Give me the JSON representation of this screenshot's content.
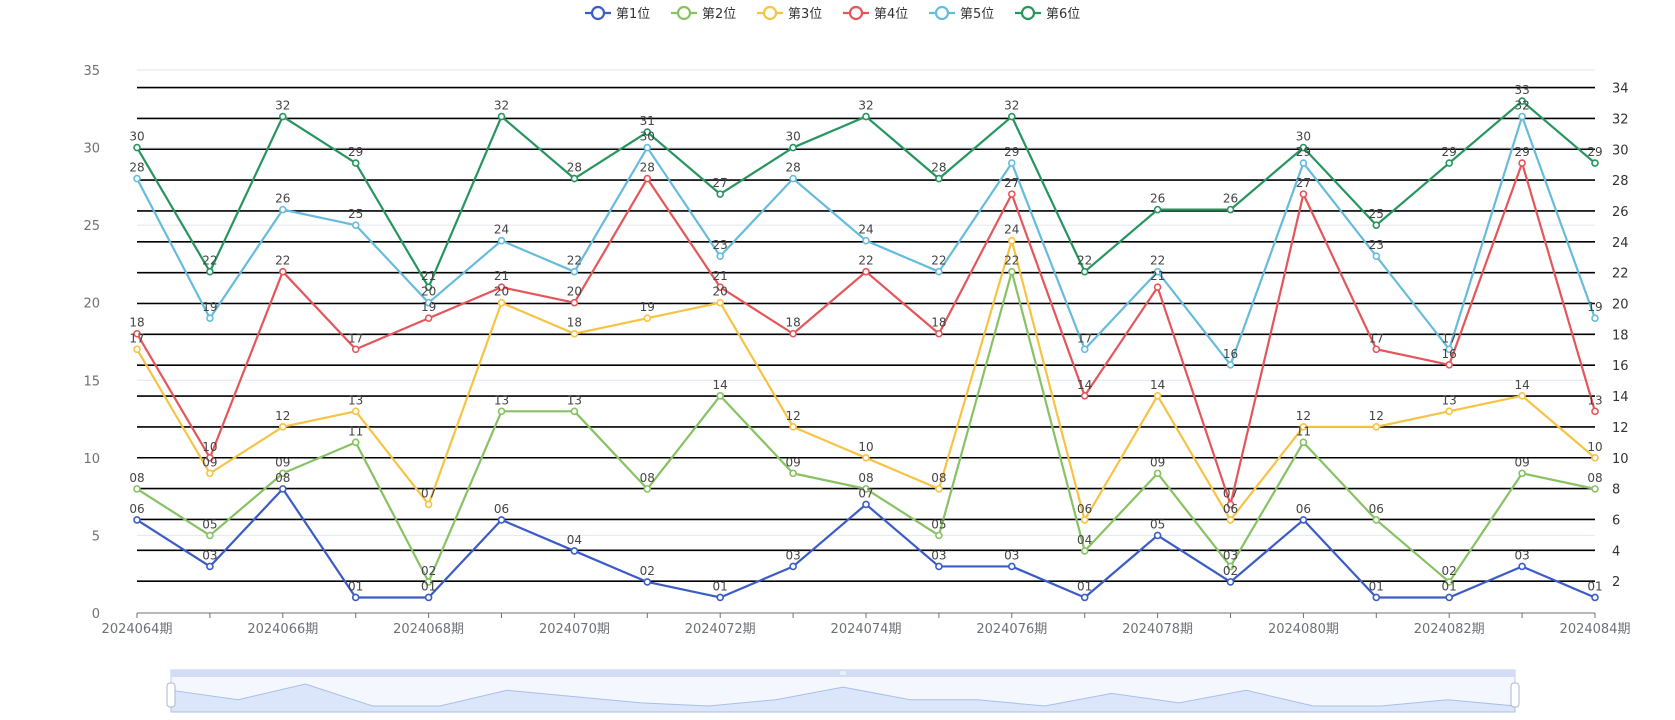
{
  "colors": {
    "series": [
      "#3b5cc7",
      "#87c263",
      "#f6c344",
      "#e5565a",
      "#67bbdc",
      "#26965e"
    ],
    "grid": "#e0e6f1",
    "ref_line": "#000000",
    "axis": "#6e7079",
    "zoom_fill": "#dbe6fb",
    "zoom_border": "#bccdee"
  },
  "chart_data": {
    "type": "line",
    "x": [
      "2024064期",
      "2024065期",
      "2024066期",
      "2024067期",
      "2024068期",
      "2024069期",
      "2024070期",
      "2024071期",
      "2024072期",
      "2024073期",
      "2024074期",
      "2024075期",
      "2024076期",
      "2024077期",
      "2024078期",
      "2024079期",
      "2024080期",
      "2024081期",
      "2024082期",
      "2024083期",
      "2024084期"
    ],
    "x_tick_labels": [
      "2024064期",
      "2024066期",
      "2024068期",
      "2024070期",
      "2024072期",
      "2024074期",
      "2024076期",
      "2024078期",
      "2024080期",
      "2024082期",
      "2024084期"
    ],
    "ylim": [
      0,
      35
    ],
    "y_ticks": [
      "0",
      "5",
      "10",
      "15",
      "20",
      "25",
      "30",
      "35"
    ],
    "y2_ticks": [
      "2",
      "4",
      "6",
      "8",
      "10",
      "12",
      "14",
      "16",
      "18",
      "20",
      "22",
      "24",
      "26",
      "28",
      "30",
      "32",
      "34"
    ],
    "reference_lines": [
      2,
      4,
      6,
      8,
      10,
      12,
      14,
      16,
      18,
      20,
      22,
      24,
      26,
      28,
      30,
      32,
      34
    ],
    "legend_position": "top-center",
    "grid": true,
    "series": [
      {
        "name": "第1位",
        "values": [
          6,
          3,
          8,
          1,
          1,
          6,
          4,
          2,
          1,
          3,
          7,
          3,
          3,
          1,
          5,
          2,
          6,
          1,
          1,
          3,
          1
        ],
        "labels": [
          "06",
          "03",
          "08",
          "01",
          "01",
          "06",
          "04",
          "02",
          "01",
          "03",
          "07",
          "03",
          "03",
          "01",
          "05",
          "02",
          "06",
          "01",
          "01",
          "03",
          "01"
        ]
      },
      {
        "name": "第2位",
        "values": [
          8,
          5,
          9,
          11,
          2,
          13,
          13,
          8,
          14,
          9,
          8,
          5,
          22,
          4,
          9,
          3,
          11,
          6,
          2,
          9,
          8
        ],
        "labels": [
          "08",
          "05",
          "09",
          "11",
          "02",
          "13",
          "13",
          "08",
          "14",
          "09",
          "08",
          "05",
          "22",
          "04",
          "09",
          "03",
          "11",
          "06",
          "02",
          "09",
          "08"
        ]
      },
      {
        "name": "第3位",
        "values": [
          17,
          9,
          12,
          13,
          7,
          20,
          18,
          19,
          20,
          12,
          10,
          8,
          24,
          6,
          14,
          6,
          12,
          12,
          13,
          14,
          10
        ],
        "labels": [
          "17",
          "09",
          "12",
          "13",
          "07",
          "20",
          "18",
          "19",
          "20",
          "12",
          "10",
          "08",
          "24",
          "06",
          "14",
          "06",
          "12",
          "12",
          "13",
          "14",
          "10"
        ]
      },
      {
        "name": "第4位",
        "values": [
          18,
          10,
          22,
          17,
          19,
          21,
          20,
          28,
          21,
          18,
          22,
          18,
          27,
          14,
          21,
          7,
          27,
          17,
          16,
          29,
          13
        ],
        "labels": [
          "18",
          "10",
          "22",
          "17",
          "19",
          "21",
          "20",
          "28",
          "21",
          "18",
          "22",
          "18",
          "27",
          "14",
          "21",
          "07",
          "27",
          "17",
          "16",
          "29",
          "13"
        ]
      },
      {
        "name": "第5位",
        "values": [
          28,
          19,
          26,
          25,
          20,
          24,
          22,
          30,
          23,
          28,
          24,
          22,
          29,
          17,
          22,
          16,
          29,
          23,
          17,
          32,
          19
        ],
        "labels": [
          "28",
          "19",
          "26",
          "25",
          "20",
          "24",
          "22",
          "30",
          "23",
          "28",
          "24",
          "22",
          "29",
          "17",
          "22",
          "16",
          "29",
          "23",
          "17",
          "32",
          "19"
        ]
      },
      {
        "name": "第6位",
        "values": [
          30,
          22,
          32,
          29,
          21,
          32,
          28,
          31,
          27,
          30,
          32,
          28,
          32,
          22,
          26,
          26,
          30,
          25,
          29,
          33,
          29
        ],
        "labels": [
          "30",
          "22",
          "32",
          "29",
          "21",
          "32",
          "28",
          "31",
          "27",
          "30",
          "32",
          "28",
          "32",
          "22",
          "26",
          "26",
          "30",
          "25",
          "29",
          "33",
          "29"
        ]
      }
    ]
  }
}
